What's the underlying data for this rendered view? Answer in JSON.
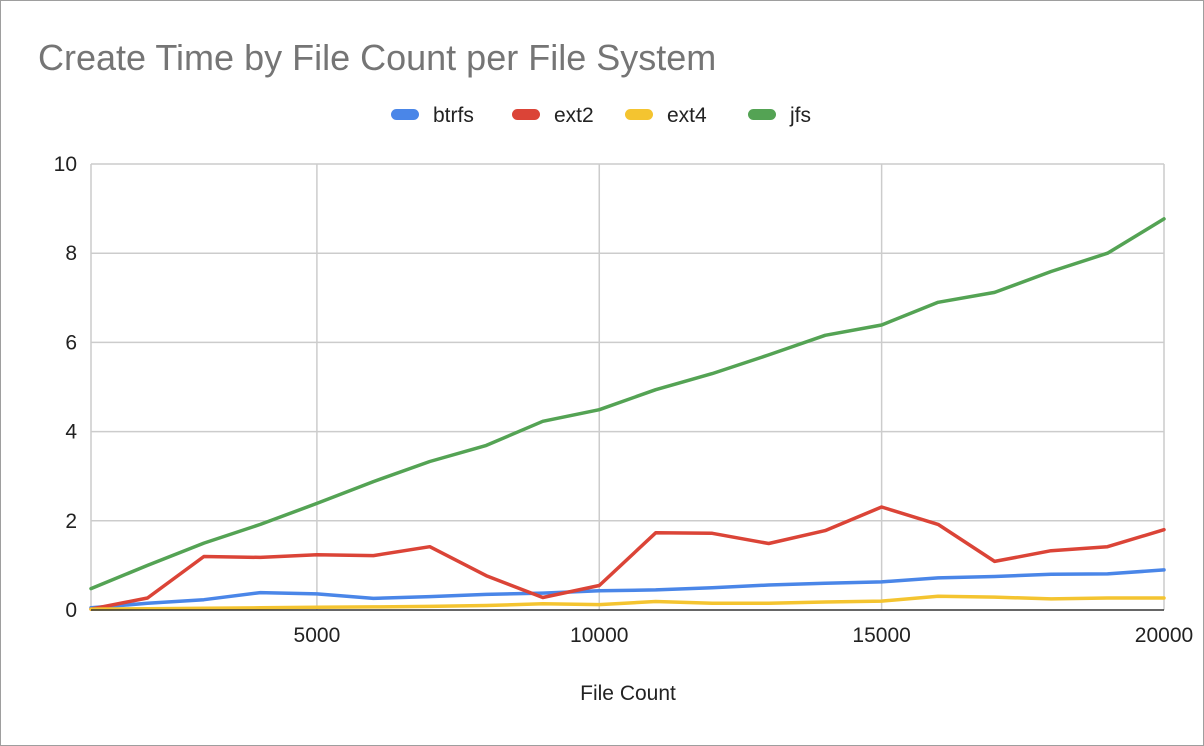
{
  "chart_data": {
    "type": "line",
    "title": "Create Time by File Count per File System",
    "xlabel": "File Count",
    "ylabel": "",
    "xlim": [
      1000,
      20000
    ],
    "ylim": [
      0,
      10
    ],
    "x_ticks": [
      5000,
      10000,
      15000,
      20000
    ],
    "y_ticks": [
      0,
      2,
      4,
      6,
      8,
      10
    ],
    "legend_position": "top",
    "grid": true,
    "x": [
      1000,
      2000,
      3000,
      4000,
      5000,
      6000,
      7000,
      8000,
      9000,
      10000,
      11000,
      12000,
      13000,
      14000,
      15000,
      16000,
      17000,
      18000,
      19000,
      20000
    ],
    "series": [
      {
        "name": "btrfs",
        "color": "#4a86e8",
        "values": [
          0.05,
          0.15,
          0.23,
          0.39,
          0.36,
          0.26,
          0.3,
          0.35,
          0.38,
          0.43,
          0.45,
          0.5,
          0.56,
          0.6,
          0.63,
          0.72,
          0.75,
          0.8,
          0.81,
          0.9
        ]
      },
      {
        "name": "ext2",
        "color": "#db4437",
        "values": [
          0.02,
          0.27,
          1.2,
          1.18,
          1.24,
          1.22,
          1.42,
          0.77,
          0.28,
          0.55,
          1.73,
          1.72,
          1.49,
          1.78,
          2.31,
          1.92,
          1.09,
          1.33,
          1.42,
          1.8
        ]
      },
      {
        "name": "ext4",
        "color": "#f4c430",
        "values": [
          0.02,
          0.03,
          0.04,
          0.05,
          0.06,
          0.07,
          0.08,
          0.1,
          0.14,
          0.12,
          0.19,
          0.15,
          0.15,
          0.18,
          0.2,
          0.31,
          0.29,
          0.25,
          0.27,
          0.27
        ]
      },
      {
        "name": "jfs",
        "color": "#54a354",
        "values": [
          0.48,
          1.0,
          1.5,
          1.92,
          2.39,
          2.88,
          3.33,
          3.69,
          4.23,
          4.49,
          4.94,
          5.3,
          5.72,
          6.16,
          6.39,
          6.9,
          7.12,
          7.59,
          8.0,
          8.77
        ]
      }
    ]
  }
}
